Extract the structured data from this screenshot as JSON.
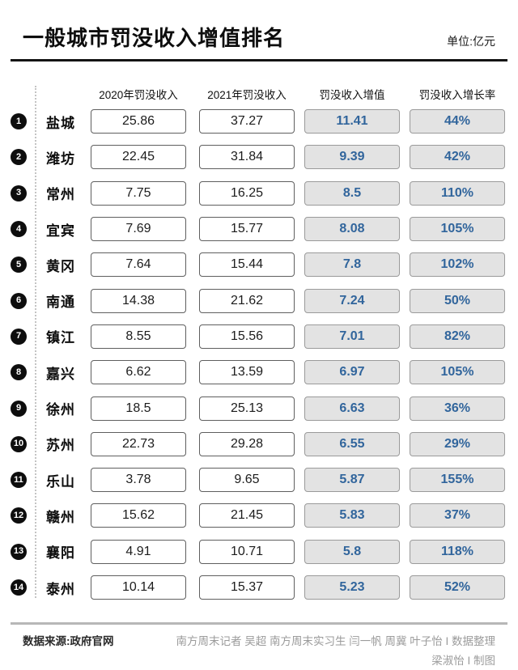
{
  "header": {
    "title": "一般城市罚没收入增值排名",
    "unit": "单位:亿元"
  },
  "table": {
    "columns": [
      "2020年罚没收入",
      "2021年罚没收入",
      "罚没收入增值",
      "罚没收入增长率"
    ],
    "rows": [
      {
        "rank": "1",
        "city": "盐城",
        "y2020": "25.86",
        "y2021": "37.27",
        "delta": "11.41",
        "growth": "44%"
      },
      {
        "rank": "2",
        "city": "潍坊",
        "y2020": "22.45",
        "y2021": "31.84",
        "delta": "9.39",
        "growth": "42%"
      },
      {
        "rank": "3",
        "city": "常州",
        "y2020": "7.75",
        "y2021": "16.25",
        "delta": "8.5",
        "growth": "110%"
      },
      {
        "rank": "4",
        "city": "宜宾",
        "y2020": "7.69",
        "y2021": "15.77",
        "delta": "8.08",
        "growth": "105%"
      },
      {
        "rank": "5",
        "city": "黄冈",
        "y2020": "7.64",
        "y2021": "15.44",
        "delta": "7.8",
        "growth": "102%"
      },
      {
        "rank": "6",
        "city": "南通",
        "y2020": "14.38",
        "y2021": "21.62",
        "delta": "7.24",
        "growth": "50%"
      },
      {
        "rank": "7",
        "city": "镇江",
        "y2020": "8.55",
        "y2021": "15.56",
        "delta": "7.01",
        "growth": "82%"
      },
      {
        "rank": "8",
        "city": "嘉兴",
        "y2020": "6.62",
        "y2021": "13.59",
        "delta": "6.97",
        "growth": "105%"
      },
      {
        "rank": "9",
        "city": "徐州",
        "y2020": "18.5",
        "y2021": "25.13",
        "delta": "6.63",
        "growth": "36%"
      },
      {
        "rank": "10",
        "city": "苏州",
        "y2020": "22.73",
        "y2021": "29.28",
        "delta": "6.55",
        "growth": "29%"
      },
      {
        "rank": "11",
        "city": "乐山",
        "y2020": "3.78",
        "y2021": "9.65",
        "delta": "5.87",
        "growth": "155%"
      },
      {
        "rank": "12",
        "city": "赣州",
        "y2020": "15.62",
        "y2021": "21.45",
        "delta": "5.83",
        "growth": "37%"
      },
      {
        "rank": "13",
        "city": "襄阳",
        "y2020": "4.91",
        "y2021": "10.71",
        "delta": "5.8",
        "growth": "118%"
      },
      {
        "rank": "14",
        "city": "泰州",
        "y2020": "10.14",
        "y2021": "15.37",
        "delta": "5.23",
        "growth": "52%"
      }
    ]
  },
  "footer": {
    "source": "数据来源:政府官网",
    "credit_line1": "南方周末记者 吴超 南方周末实习生 闫一帆 周冀 叶子怡 I 数据整理",
    "credit_line2": "梁淑怡 I 制图"
  },
  "colors": {
    "accent_blue": "#31659c",
    "box_gray_fill": "#e3e3e3",
    "box_gray_border": "#9a9a9a",
    "box_white_border": "#5f5f5f",
    "rank_circle": "#0d0d0d",
    "header_rule": "#141414",
    "footer_rule": "#b7b7b7",
    "credits_gray": "#9b9b9b"
  },
  "chart_data": {
    "type": "table",
    "title": "一般城市罚没收入增值排名",
    "unit": "亿元",
    "categories": [
      "盐城",
      "潍坊",
      "常州",
      "宜宾",
      "黄冈",
      "南通",
      "镇江",
      "嘉兴",
      "徐州",
      "苏州",
      "乐山",
      "赣州",
      "襄阳",
      "泰州"
    ],
    "series": [
      {
        "name": "2020年罚没收入",
        "values": [
          25.86,
          22.45,
          7.75,
          7.69,
          7.64,
          14.38,
          8.55,
          6.62,
          18.5,
          22.73,
          3.78,
          15.62,
          4.91,
          10.14
        ]
      },
      {
        "name": "2021年罚没收入",
        "values": [
          37.27,
          31.84,
          16.25,
          15.77,
          15.44,
          21.62,
          15.56,
          13.59,
          25.13,
          29.28,
          9.65,
          21.45,
          10.71,
          15.37
        ]
      },
      {
        "name": "罚没收入增值",
        "values": [
          11.41,
          9.39,
          8.5,
          8.08,
          7.8,
          7.24,
          7.01,
          6.97,
          6.63,
          6.55,
          5.87,
          5.83,
          5.8,
          5.23
        ]
      },
      {
        "name": "罚没收入增长率(%)",
        "values": [
          44,
          42,
          110,
          105,
          102,
          50,
          82,
          105,
          36,
          29,
          155,
          37,
          118,
          52
        ]
      }
    ]
  }
}
